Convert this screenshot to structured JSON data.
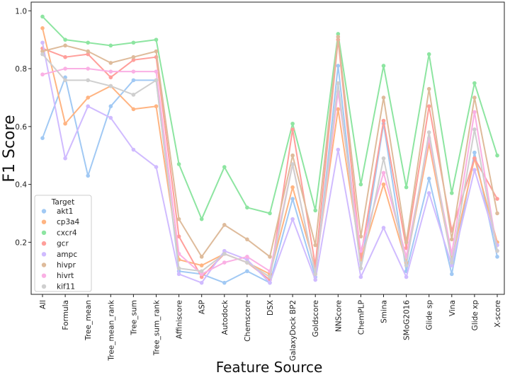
{
  "chart_data": {
    "type": "line",
    "xlabel": "Feature Source",
    "ylabel": "F1 Score",
    "ylim": [
      0.02,
      1.03
    ],
    "yticks": [
      0.2,
      0.4,
      0.6,
      0.8,
      1.0
    ],
    "grid": false,
    "legend": {
      "title": "Target",
      "placement": "bottom-left"
    },
    "categories": [
      "All",
      "Formula",
      "Tree_mean",
      "Tree_mean_rank",
      "Tree_sum",
      "Tree_sum_rank",
      "Affiniscore",
      "ASP",
      "Autodock",
      "Chemscore",
      "DSX",
      "GalaxyDock BP2",
      "Goldscore",
      "NNScore",
      "ChemPLP",
      "Smina",
      "SMoG2016",
      "Glide sp",
      "Vina",
      "Glide xp",
      "X-score"
    ],
    "series": [
      {
        "name": "akt1",
        "color": "#a1c9f4",
        "values": [
          0.56,
          0.77,
          0.43,
          0.67,
          0.76,
          0.76,
          0.1,
          0.09,
          0.06,
          0.1,
          0.06,
          0.35,
          0.08,
          0.81,
          0.11,
          0.61,
          0.1,
          0.42,
          0.09,
          0.51,
          0.15
        ]
      },
      {
        "name": "cp3a4",
        "color": "#ffb482",
        "values": [
          0.94,
          0.61,
          0.7,
          0.74,
          0.66,
          0.67,
          0.14,
          0.12,
          0.16,
          0.13,
          0.09,
          0.39,
          0.11,
          0.66,
          0.14,
          0.4,
          0.13,
          0.54,
          0.14,
          0.49,
          0.2
        ]
      },
      {
        "name": "cxcr4",
        "color": "#8de5a1",
        "values": [
          0.98,
          0.9,
          0.89,
          0.88,
          0.89,
          0.9,
          0.47,
          0.28,
          0.46,
          0.32,
          0.3,
          0.61,
          0.31,
          0.92,
          0.4,
          0.81,
          0.39,
          0.85,
          0.37,
          0.75,
          0.5
        ]
      },
      {
        "name": "gcr",
        "color": "#ff9f9b",
        "values": [
          0.87,
          0.84,
          0.85,
          0.77,
          0.83,
          0.84,
          0.22,
          0.08,
          0.16,
          0.13,
          0.07,
          0.59,
          0.12,
          0.9,
          0.15,
          0.62,
          0.18,
          0.67,
          0.24,
          0.49,
          0.35
        ]
      },
      {
        "name": "ampc",
        "color": "#d0bbff",
        "values": [
          0.89,
          0.49,
          0.67,
          0.63,
          0.52,
          0.46,
          0.09,
          0.06,
          0.17,
          0.14,
          0.06,
          0.28,
          0.07,
          0.52,
          0.08,
          0.25,
          0.08,
          0.37,
          0.12,
          0.45,
          0.19
        ]
      },
      {
        "name": "hivpr",
        "color": "#debb9b",
        "values": [
          0.86,
          0.88,
          0.86,
          0.82,
          0.84,
          0.86,
          0.28,
          0.15,
          0.26,
          0.21,
          0.15,
          0.5,
          0.19,
          0.91,
          0.22,
          0.7,
          0.2,
          0.73,
          0.21,
          0.7,
          0.3
        ]
      },
      {
        "name": "hivrt",
        "color": "#fab0e4",
        "values": [
          0.78,
          0.8,
          0.8,
          0.79,
          0.79,
          0.79,
          0.16,
          0.09,
          0.13,
          0.15,
          0.1,
          0.47,
          0.09,
          0.72,
          0.17,
          0.44,
          0.15,
          0.56,
          0.16,
          0.65,
          0.17
        ]
      },
      {
        "name": "kif11",
        "color": "#cfcfcf",
        "values": [
          0.85,
          0.76,
          0.76,
          0.74,
          0.71,
          0.76,
          0.11,
          0.1,
          0.16,
          0.13,
          0.08,
          0.47,
          0.09,
          0.75,
          0.11,
          0.49,
          0.12,
          0.58,
          0.13,
          0.59,
          0.17
        ]
      }
    ]
  }
}
